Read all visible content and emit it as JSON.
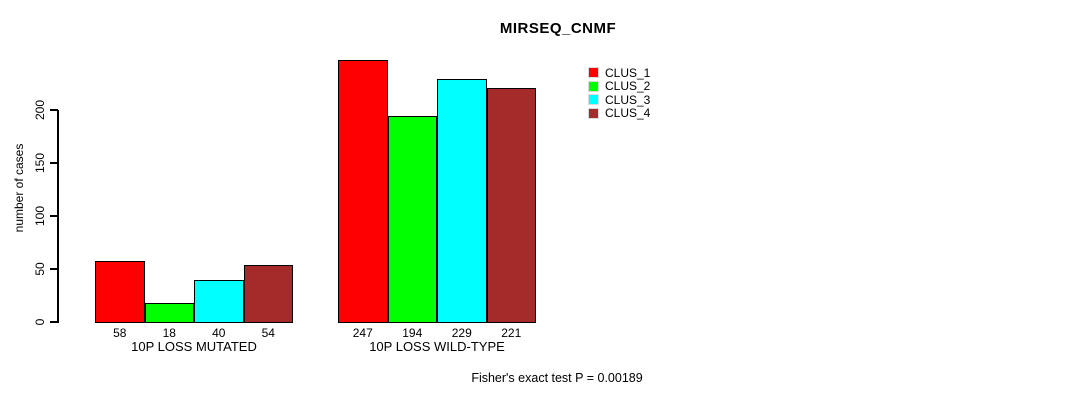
{
  "title": "MIRSEQ_CNMF",
  "footnote": "Fisher's exact test P = 0.00189",
  "chart_data": {
    "type": "bar",
    "title": "MIRSEQ_CNMF",
    "xlabel": "",
    "ylabel": "number of cases",
    "categories": [
      "10P LOSS MUTATED",
      "10P LOSS WILD-TYPE"
    ],
    "series": [
      {
        "name": "CLUS_1",
        "color": "#ff0000",
        "values": [
          58,
          247
        ]
      },
      {
        "name": "CLUS_2",
        "color": "#00ff00",
        "values": [
          18,
          194
        ]
      },
      {
        "name": "CLUS_3",
        "color": "#00ffff",
        "values": [
          40,
          229
        ]
      },
      {
        "name": "CLUS_4",
        "color": "#a52a2a",
        "values": [
          54,
          221
        ]
      }
    ],
    "value_labels": [
      [
        "58",
        "18",
        "40",
        "54"
      ],
      [
        "247",
        "194",
        "229",
        "221"
      ]
    ],
    "yticks": [
      "0",
      "50",
      "100",
      "150",
      "200"
    ],
    "ylim": [
      0,
      200
    ],
    "grid": false,
    "legend_position": "top-right",
    "annotation": "Fisher's exact test P = 0.00189"
  }
}
